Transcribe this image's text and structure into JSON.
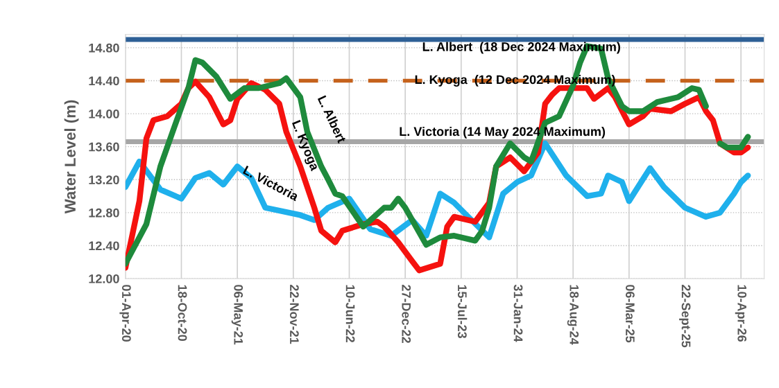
{
  "chart_data": {
    "type": "line",
    "ylabel": "Water Level (m)",
    "ylim": [
      12.0,
      14.96
    ],
    "yticks": [
      {
        "value": 12.0,
        "label": "12.00"
      },
      {
        "value": 12.4,
        "label": "12.40"
      },
      {
        "value": 12.8,
        "label": "12.80"
      },
      {
        "value": 13.2,
        "label": "13.20"
      },
      {
        "value": 13.6,
        "label": "13.60"
      },
      {
        "value": 14.0,
        "label": "14.00"
      },
      {
        "value": 14.4,
        "label": "14.40"
      },
      {
        "value": 14.8,
        "label": "14.80"
      }
    ],
    "xlim": [
      "2020-04-01",
      "2026-07-02"
    ],
    "xticks": [
      {
        "value": "2020-04-01",
        "label": "01-Apr-20"
      },
      {
        "value": "2020-10-18",
        "label": "18-Oct-20"
      },
      {
        "value": "2021-05-06",
        "label": "06-May-21"
      },
      {
        "value": "2021-11-22",
        "label": "22-Nov-21"
      },
      {
        "value": "2022-06-10",
        "label": "10-Jun-22"
      },
      {
        "value": "2022-12-27",
        "label": "27-Dec-22"
      },
      {
        "value": "2023-07-15",
        "label": "15-Jul-23"
      },
      {
        "value": "2024-01-31",
        "label": "31-Jan-24"
      },
      {
        "value": "2024-08-18",
        "label": "18-Aug-24"
      },
      {
        "value": "2025-03-06",
        "label": "06-Mar-25"
      },
      {
        "value": "2025-09-22",
        "label": "22-Sept-25"
      },
      {
        "value": "2026-04-10",
        "label": "10-Apr-26"
      }
    ],
    "grid": true,
    "legend": false,
    "marker": "none",
    "line_style": "solid",
    "ref_lines": [
      {
        "axis": "y",
        "value": 14.9,
        "label": "L. Albert  (18 Dec 2024 Maximum)",
        "color": "#2e6096",
        "line_style": "solid"
      },
      {
        "axis": "y",
        "value": 14.4,
        "label": "L. Kyoga  (12 Dec 2024 Maximum)",
        "color": "#c5621c",
        "line_style": "dashed"
      },
      {
        "axis": "y",
        "value": 13.66,
        "label": "L. Victoria (14 May 2024 Maximum)",
        "color": "#a6a6a6",
        "line_style": "solid"
      }
    ],
    "series": [
      {
        "name": "L. Victoria",
        "color": "#1fb0ec",
        "x": [
          "2020-04-01",
          "2020-05-21",
          "2020-08-04",
          "2020-10-18",
          "2020-12-07",
          "2021-01-26",
          "2021-03-17",
          "2021-05-06",
          "2021-06-25",
          "2021-08-14",
          "2021-12-17",
          "2022-02-05",
          "2022-03-27",
          "2022-06-10",
          "2022-08-24",
          "2022-11-07",
          "2023-01-21",
          "2023-03-12",
          "2023-05-01",
          "2023-06-20",
          "2023-08-09",
          "2023-10-23",
          "2023-12-12",
          "2024-01-31",
          "2024-03-21",
          "2024-05-10",
          "2024-07-24",
          "2024-10-07",
          "2024-11-26",
          "2024-12-21",
          "2025-02-09",
          "2025-03-06",
          "2025-05-20",
          "2025-07-09",
          "2025-09-22",
          "2025-12-06",
          "2026-01-25",
          "2026-03-16",
          "2026-04-10",
          "2026-05-05"
        ],
        "values": [
          13.11,
          13.42,
          13.08,
          12.97,
          13.22,
          13.28,
          13.14,
          13.36,
          13.22,
          12.86,
          12.77,
          12.71,
          12.86,
          12.97,
          12.6,
          12.52,
          12.71,
          12.52,
          13.03,
          12.92,
          12.75,
          12.5,
          13.03,
          13.17,
          13.25,
          13.64,
          13.25,
          13.0,
          13.03,
          13.25,
          13.17,
          12.94,
          13.34,
          13.11,
          12.86,
          12.75,
          12.8,
          13.03,
          13.17,
          13.25
        ]
      },
      {
        "name": "L. Kyoga",
        "color": "#f5120f",
        "x": [
          "2020-04-01",
          "2020-05-21",
          "2020-06-15",
          "2020-07-10",
          "2020-08-29",
          "2020-10-18",
          "2020-11-12",
          "2020-12-07",
          "2021-01-26",
          "2021-03-17",
          "2021-04-11",
          "2021-05-06",
          "2021-06-25",
          "2021-08-14",
          "2021-10-03",
          "2021-10-28",
          "2021-12-17",
          "2022-02-05",
          "2022-03-02",
          "2022-04-21",
          "2022-05-16",
          "2022-07-30",
          "2022-09-18",
          "2022-10-13",
          "2022-12-02",
          "2023-01-21",
          "2023-02-15",
          "2023-05-01",
          "2023-05-26",
          "2023-06-20",
          "2023-09-03",
          "2023-10-23",
          "2023-11-17",
          "2024-01-06",
          "2024-02-25",
          "2024-04-15",
          "2024-05-10",
          "2024-06-04",
          "2024-06-29",
          "2024-10-07",
          "2024-11-01",
          "2024-12-21",
          "2025-01-15",
          "2025-03-06",
          "2025-04-25",
          "2025-05-20",
          "2025-08-03",
          "2025-09-22",
          "2025-11-11",
          "2025-12-06",
          "2025-12-31",
          "2026-01-25",
          "2026-03-16",
          "2026-04-10",
          "2026-05-05"
        ],
        "values": [
          12.13,
          12.94,
          13.7,
          13.92,
          13.97,
          14.12,
          14.31,
          14.39,
          14.2,
          13.87,
          13.92,
          14.18,
          14.37,
          14.29,
          14.12,
          13.78,
          13.36,
          12.86,
          12.58,
          12.44,
          12.58,
          12.66,
          12.69,
          12.63,
          12.44,
          12.21,
          12.1,
          12.18,
          12.63,
          12.75,
          12.69,
          12.92,
          13.36,
          13.47,
          13.3,
          13.53,
          14.12,
          14.23,
          14.31,
          14.31,
          14.18,
          14.31,
          14.2,
          13.87,
          13.97,
          14.06,
          14.03,
          14.12,
          14.2,
          14.03,
          13.92,
          13.64,
          13.53,
          13.53,
          13.59
        ]
      },
      {
        "name": "L. Albert",
        "color": "#1e8a3c",
        "x": [
          "2020-04-01",
          "2020-06-15",
          "2020-08-04",
          "2020-09-23",
          "2020-11-12",
          "2020-12-07",
          "2021-01-01",
          "2021-02-20",
          "2021-04-11",
          "2021-05-31",
          "2021-07-20",
          "2021-10-03",
          "2021-10-28",
          "2021-12-17",
          "2022-01-11",
          "2022-03-02",
          "2022-03-27",
          "2022-04-21",
          "2022-05-16",
          "2022-07-30",
          "2022-10-13",
          "2022-11-07",
          "2022-12-02",
          "2022-12-27",
          "2023-03-12",
          "2023-05-01",
          "2023-06-20",
          "2023-09-03",
          "2023-09-28",
          "2023-10-23",
          "2023-11-17",
          "2024-01-06",
          "2024-02-25",
          "2024-03-21",
          "2024-05-10",
          "2024-06-29",
          "2024-08-18",
          "2024-09-12",
          "2024-10-07",
          "2024-11-26",
          "2024-12-21",
          "2025-02-09",
          "2025-03-06",
          "2025-04-25",
          "2025-06-14",
          "2025-08-28",
          "2025-10-17",
          "2025-11-11",
          "2025-12-06",
          "2025-12-31",
          "2026-01-25",
          "2026-02-19",
          "2026-04-10",
          "2026-05-05"
        ],
        "values": [
          12.18,
          12.66,
          13.36,
          13.84,
          14.31,
          14.65,
          14.62,
          14.45,
          14.18,
          14.31,
          14.31,
          14.37,
          14.43,
          14.2,
          13.78,
          13.36,
          13.2,
          13.03,
          13.0,
          12.63,
          12.86,
          12.86,
          12.97,
          12.86,
          12.41,
          12.5,
          12.52,
          12.46,
          12.58,
          12.86,
          13.36,
          13.64,
          13.47,
          13.42,
          13.89,
          13.97,
          14.34,
          14.62,
          14.82,
          14.79,
          14.43,
          14.09,
          14.03,
          14.03,
          14.14,
          14.2,
          14.31,
          14.29,
          14.09,
          null,
          13.64,
          13.59,
          13.59,
          13.72
        ]
      }
    ]
  }
}
